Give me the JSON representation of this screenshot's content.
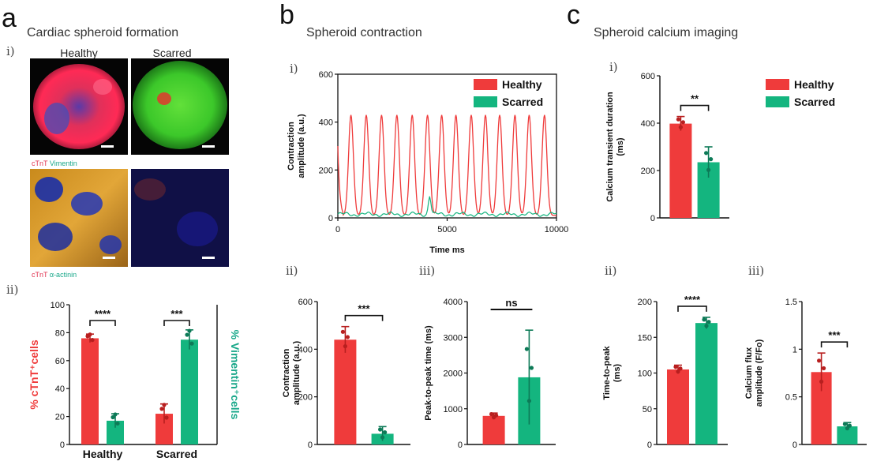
{
  "colors": {
    "healthy": "#ef3b3b",
    "scarred": "#14b57f",
    "vimentin": "#1aa88a"
  },
  "panel_a": {
    "letter": "a",
    "title": "Cardiac spheroid formation",
    "sub_i": "i)",
    "sub_ii": "ii)",
    "img_labels": [
      "Healthy",
      "Scarred"
    ],
    "stain_top": {
      "part1": "cTnT",
      "part2": "Vimentin"
    },
    "stain_bottom": {
      "part1": "cTnT",
      "part2": "α-actinin"
    },
    "ylabel_left": "% cTnT⁺cells",
    "ylabel_right": "% Vimentin⁺cells"
  },
  "panel_b": {
    "letter": "b",
    "title": "Spheroid contraction",
    "sub_i": "i)",
    "sub_ii": "ii)",
    "sub_iii": "iii)"
  },
  "panel_c": {
    "letter": "c",
    "title": "Spheroid calcium imaging",
    "sub_i": "i)",
    "sub_ii": "ii)",
    "sub_iii": "iii)"
  },
  "chart_data": [
    {
      "id": "a-ii",
      "type": "bar",
      "categories": [
        "Healthy",
        "Scarred"
      ],
      "series": [
        {
          "name": "% cTnT⁺cells",
          "values": [
            76,
            22
          ],
          "errors": [
            3,
            7
          ]
        },
        {
          "name": "% Vimentin⁺cells",
          "values": [
            17,
            75
          ],
          "errors": [
            5,
            7
          ]
        }
      ],
      "ylabel": "% cTnT⁺cells",
      "y2label": "% Vimentin⁺cells",
      "ylim": [
        0,
        100
      ],
      "yticks": [
        0,
        20,
        40,
        60,
        80,
        100
      ],
      "significance": [
        "****",
        "***"
      ]
    },
    {
      "id": "b-i",
      "type": "line",
      "xlabel": "Time ms",
      "ylabel": "Contraction amplitude (a.u.)",
      "xlim": [
        0,
        10000
      ],
      "ylim": [
        0,
        600
      ],
      "xticks": [
        0,
        5000,
        10000
      ],
      "yticks": [
        0,
        200,
        400,
        600
      ],
      "legend": [
        "Healthy",
        "Scarred"
      ],
      "legend_position": "top-right",
      "healthy_peaks_ms": [
        600,
        1300,
        2000,
        2700,
        3400,
        4100,
        4750,
        5400,
        6100,
        6750,
        7400,
        8100,
        8750,
        9450
      ],
      "healthy_peak_amplitude": 430,
      "healthy_baseline": 10,
      "scarred_baseline": 15,
      "scarred_spike_ms": 4200,
      "scarred_spike_amplitude": 80
    },
    {
      "id": "b-ii",
      "type": "bar",
      "categories": [
        "Healthy",
        "Scarred"
      ],
      "values": [
        440,
        45
      ],
      "errors": [
        55,
        30
      ],
      "ylabel": "Contraction amplitude (a.u.)",
      "ylim": [
        0,
        600
      ],
      "yticks": [
        0,
        200,
        400,
        600
      ],
      "significance": "***"
    },
    {
      "id": "b-iii",
      "type": "bar",
      "categories": [
        "Healthy",
        "Scarred"
      ],
      "values": [
        800,
        1880
      ],
      "errors": [
        80,
        1320
      ],
      "ylabel": "Peak-to-peak time (ms)",
      "ylim": [
        0,
        4000
      ],
      "yticks": [
        0,
        1000,
        2000,
        3000,
        4000
      ],
      "significance": "ns"
    },
    {
      "id": "c-i",
      "type": "bar",
      "categories": [
        "Healthy",
        "Scarred"
      ],
      "values": [
        398,
        235
      ],
      "errors": [
        30,
        65
      ],
      "ylabel": "Calcium transient duration (ms)",
      "ylim": [
        0,
        600
      ],
      "yticks": [
        0,
        200,
        400,
        600
      ],
      "legend": [
        "Healthy",
        "Scarred"
      ],
      "significance": "**"
    },
    {
      "id": "c-ii",
      "type": "bar",
      "categories": [
        "Healthy",
        "Scarred"
      ],
      "values": [
        105,
        170
      ],
      "errors": [
        6,
        8
      ],
      "ylabel": "Time-to-peak (ms)",
      "ylim": [
        0,
        200
      ],
      "yticks": [
        0,
        50,
        100,
        150,
        200
      ],
      "significance": "****"
    },
    {
      "id": "c-iii",
      "type": "bar",
      "categories": [
        "Healthy",
        "Scarred"
      ],
      "values": [
        0.76,
        0.19
      ],
      "errors": [
        0.2,
        0.04
      ],
      "ylabel": "Calcium flux amplitude (F/Fo)",
      "ylim": [
        0,
        1.5
      ],
      "yticks": [
        0.0,
        0.5,
        1.0,
        1.5
      ],
      "significance": "***"
    }
  ]
}
